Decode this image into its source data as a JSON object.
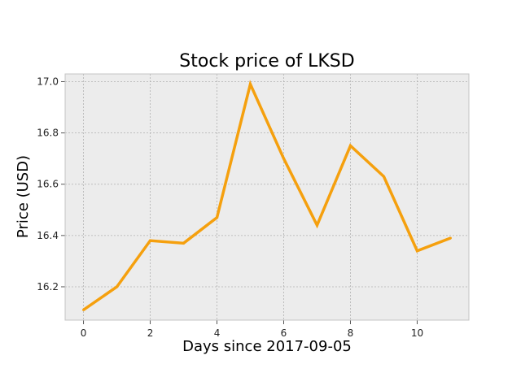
{
  "chart_data": {
    "type": "line",
    "title": "Stock price of LKSD",
    "xlabel": "Days since 2017-09-05",
    "ylabel": "Price (USD)",
    "x": [
      0,
      1,
      2,
      3,
      4,
      5,
      6,
      7,
      8,
      9,
      10,
      11
    ],
    "series": [
      {
        "values": [
          16.11,
          16.2,
          16.38,
          16.37,
          16.47,
          16.99,
          16.7,
          16.44,
          16.75,
          16.63,
          16.34,
          16.39
        ],
        "color": "#f5a00e"
      }
    ],
    "xlim": [
      -0.55,
      11.55
    ],
    "ylim": [
      16.07,
      17.03
    ],
    "xticks": [
      "0",
      "2",
      "4",
      "6",
      "8",
      "10"
    ],
    "yticks": [
      "16.2",
      "16.4",
      "16.6",
      "16.8",
      "17.0"
    ],
    "grid": true,
    "plot_background": "#ececec",
    "grid_color": "#b0b0b0"
  }
}
